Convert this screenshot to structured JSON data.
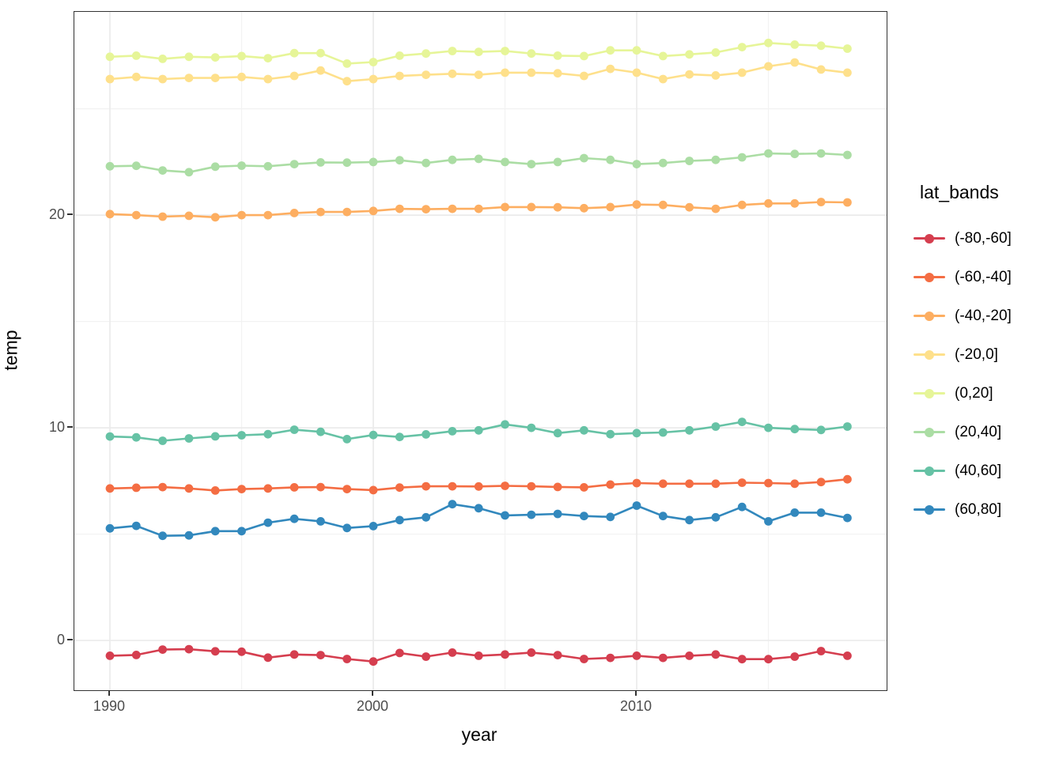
{
  "chart_data": {
    "type": "line",
    "title": "",
    "xlabel": "year",
    "ylabel": "temp",
    "legend_title": "lat_bands",
    "legend_position": "right",
    "grid": true,
    "xlim": [
      1988.65,
      2019.49
    ],
    "ylim": [
      -2.34,
      29.56
    ],
    "x_ticks": [
      1990,
      2000,
      2010
    ],
    "x_tick_labels": [
      "1990",
      "2000",
      "2010"
    ],
    "x_minor_ticks": [
      1995,
      2005,
      2015
    ],
    "y_ticks": [
      0,
      10,
      20
    ],
    "y_tick_labels": [
      "0",
      "10",
      "20"
    ],
    "y_minor_ticks": [
      5,
      15,
      25
    ],
    "x": [
      1990,
      1991,
      1992,
      1993,
      1994,
      1995,
      1996,
      1997,
      1998,
      1999,
      2000,
      2001,
      2002,
      2003,
      2004,
      2005,
      2006,
      2007,
      2008,
      2009,
      2010,
      2011,
      2012,
      2013,
      2014,
      2015,
      2016,
      2017,
      2018
    ],
    "series": [
      {
        "name": "(-80,-60]",
        "color": "#d53e4f",
        "values": [
          -0.72,
          -0.68,
          -0.43,
          -0.41,
          -0.51,
          -0.53,
          -0.81,
          -0.66,
          -0.69,
          -0.87,
          -0.99,
          -0.59,
          -0.76,
          -0.57,
          -0.72,
          -0.66,
          -0.57,
          -0.69,
          -0.87,
          -0.82,
          -0.72,
          -0.82,
          -0.72,
          -0.66,
          -0.88,
          -0.88,
          -0.76,
          -0.5,
          -0.72
        ]
      },
      {
        "name": "(-60,-40]",
        "color": "#f46d43",
        "values": [
          7.15,
          7.18,
          7.21,
          7.15,
          7.05,
          7.12,
          7.15,
          7.2,
          7.21,
          7.12,
          7.07,
          7.19,
          7.25,
          7.25,
          7.24,
          7.27,
          7.25,
          7.22,
          7.2,
          7.33,
          7.4,
          7.37,
          7.37,
          7.37,
          7.42,
          7.4,
          7.37,
          7.45,
          7.58
        ]
      },
      {
        "name": "(-40,-20]",
        "color": "#fdae61",
        "values": [
          20.05,
          20.0,
          19.93,
          19.97,
          19.9,
          20.0,
          20.0,
          20.1,
          20.15,
          20.15,
          20.2,
          20.3,
          20.28,
          20.3,
          20.3,
          20.38,
          20.38,
          20.37,
          20.33,
          20.38,
          20.5,
          20.48,
          20.37,
          20.3,
          20.48,
          20.55,
          20.55,
          20.62,
          20.6
        ]
      },
      {
        "name": "(-20,0]",
        "color": "#fee08b",
        "values": [
          26.4,
          26.5,
          26.4,
          26.45,
          26.45,
          26.5,
          26.4,
          26.55,
          26.8,
          26.3,
          26.4,
          26.55,
          26.6,
          26.65,
          26.6,
          26.7,
          26.7,
          26.67,
          26.55,
          26.88,
          26.7,
          26.4,
          26.62,
          26.57,
          26.7,
          27.0,
          27.18,
          26.85,
          26.7
        ]
      },
      {
        "name": "(0,20]",
        "color": "#e6f598",
        "values": [
          27.45,
          27.5,
          27.35,
          27.45,
          27.42,
          27.48,
          27.38,
          27.62,
          27.62,
          27.13,
          27.2,
          27.5,
          27.6,
          27.72,
          27.68,
          27.72,
          27.6,
          27.5,
          27.48,
          27.75,
          27.75,
          27.48,
          27.56,
          27.65,
          27.9,
          28.1,
          28.02,
          27.97,
          27.83
        ]
      },
      {
        "name": "(20,40]",
        "color": "#abdda4",
        "values": [
          22.3,
          22.32,
          22.1,
          22.02,
          22.28,
          22.33,
          22.3,
          22.4,
          22.48,
          22.47,
          22.5,
          22.58,
          22.45,
          22.6,
          22.65,
          22.5,
          22.4,
          22.5,
          22.68,
          22.6,
          22.4,
          22.45,
          22.55,
          22.6,
          22.72,
          22.9,
          22.88,
          22.9,
          22.83
        ]
      },
      {
        "name": "(40,60]",
        "color": "#66c2a5",
        "values": [
          9.59,
          9.55,
          9.39,
          9.5,
          9.6,
          9.65,
          9.7,
          9.91,
          9.81,
          9.47,
          9.66,
          9.57,
          9.69,
          9.84,
          9.88,
          10.16,
          10.0,
          9.75,
          9.88,
          9.7,
          9.75,
          9.78,
          9.88,
          10.06,
          10.28,
          10.0,
          9.94,
          9.9,
          10.06
        ]
      },
      {
        "name": "(60,80]",
        "color": "#3288bd",
        "values": [
          5.27,
          5.39,
          4.92,
          4.94,
          5.14,
          5.14,
          5.54,
          5.72,
          5.6,
          5.29,
          5.38,
          5.66,
          5.79,
          6.41,
          6.22,
          5.88,
          5.91,
          5.95,
          5.85,
          5.81,
          6.34,
          5.85,
          5.66,
          5.79,
          6.28,
          5.6,
          6.01,
          6.01,
          5.76
        ]
      }
    ],
    "style": {
      "grid_major_color": "#ebebeb",
      "grid_minor_color": "#f2f2f2",
      "panel_border_color": "#333333",
      "tick_label_color": "#4d4d4d",
      "axis_title_color": "#000000"
    }
  }
}
